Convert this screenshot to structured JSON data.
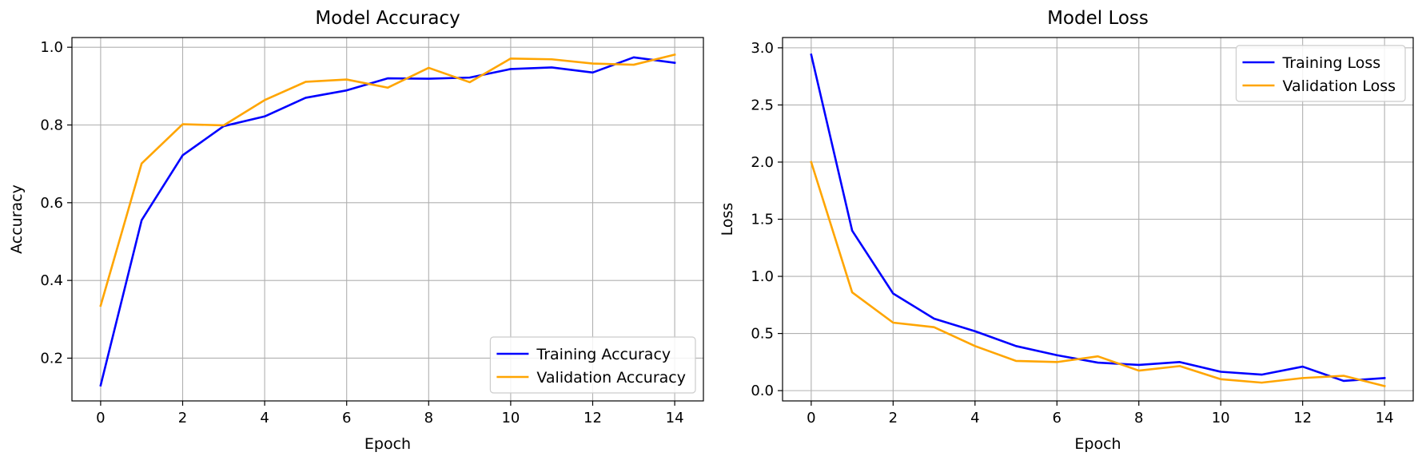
{
  "chart_data": [
    {
      "type": "line",
      "title": "Model Accuracy",
      "xlabel": "Epoch",
      "ylabel": "Accuracy",
      "xlim": [
        -0.7,
        14.7
      ],
      "ylim": [
        0.09,
        1.025
      ],
      "xticks": [
        0,
        2,
        4,
        6,
        8,
        10,
        12,
        14
      ],
      "yticks": [
        0.2,
        0.4,
        0.6,
        0.8,
        1.0
      ],
      "ytick_labels": [
        "0.2",
        "0.4",
        "0.6",
        "0.8",
        "1.0"
      ],
      "grid": true,
      "legend_position": "lower right",
      "x": [
        0,
        1,
        2,
        3,
        4,
        5,
        6,
        7,
        8,
        9,
        10,
        11,
        12,
        13,
        14
      ],
      "series": [
        {
          "name": "Training Accuracy",
          "color": "#0000ff",
          "values": [
            0.13,
            0.555,
            0.722,
            0.797,
            0.822,
            0.87,
            0.889,
            0.92,
            0.919,
            0.922,
            0.944,
            0.948,
            0.935,
            0.974,
            0.96
          ]
        },
        {
          "name": "Validation Accuracy",
          "color": "#ffa500",
          "values": [
            0.335,
            0.701,
            0.802,
            0.799,
            0.864,
            0.911,
            0.917,
            0.896,
            0.947,
            0.91,
            0.971,
            0.969,
            0.958,
            0.955,
            0.981
          ]
        }
      ]
    },
    {
      "type": "line",
      "title": "Model Loss",
      "xlabel": "Epoch",
      "ylabel": "Loss",
      "xlim": [
        -0.7,
        14.7
      ],
      "ylim": [
        -0.09,
        3.09
      ],
      "xticks": [
        0,
        2,
        4,
        6,
        8,
        10,
        12,
        14
      ],
      "yticks": [
        0.0,
        0.5,
        1.0,
        1.5,
        2.0,
        2.5,
        3.0
      ],
      "ytick_labels": [
        "0.0",
        "0.5",
        "1.0",
        "1.5",
        "2.0",
        "2.5",
        "3.0"
      ],
      "grid": true,
      "legend_position": "upper right",
      "x": [
        0,
        1,
        2,
        3,
        4,
        5,
        6,
        7,
        8,
        9,
        10,
        11,
        12,
        13,
        14
      ],
      "series": [
        {
          "name": "Training Loss",
          "color": "#0000ff",
          "values": [
            2.94,
            1.4,
            0.85,
            0.63,
            0.52,
            0.39,
            0.31,
            0.245,
            0.225,
            0.25,
            0.165,
            0.14,
            0.21,
            0.085,
            0.11
          ]
        },
        {
          "name": "Validation Loss",
          "color": "#ffa500",
          "values": [
            2.0,
            0.86,
            0.595,
            0.555,
            0.39,
            0.26,
            0.25,
            0.3,
            0.175,
            0.215,
            0.1,
            0.07,
            0.11,
            0.13,
            0.04
          ]
        }
      ]
    }
  ]
}
